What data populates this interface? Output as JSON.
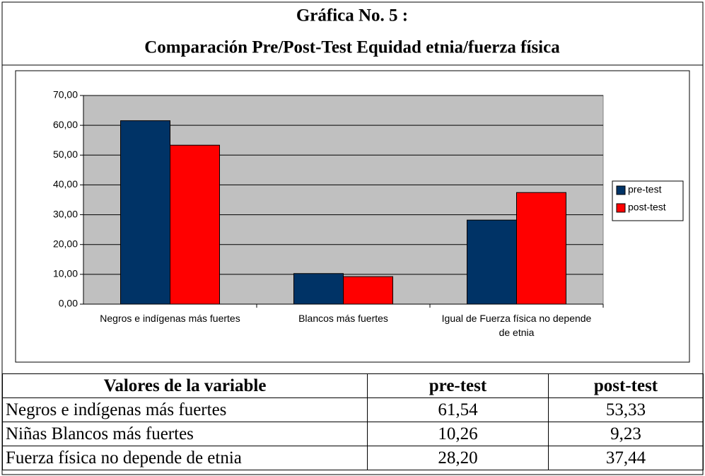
{
  "title": [
    "Gráfica No. 5 :",
    "Comparación Pre/Post-Test Equidad etnia/fuerza física"
  ],
  "chart_data": {
    "type": "bar",
    "categories": [
      "Negros e indígenas más fuertes",
      "Blancos más fuertes",
      "Igual de Fuerza física no depende de etnia"
    ],
    "series": [
      {
        "name": "pre-test",
        "color": "#003366",
        "values": [
          61.54,
          10.26,
          28.2
        ]
      },
      {
        "name": "post-test",
        "color": "#ff0000",
        "values": [
          53.33,
          9.23,
          37.44
        ]
      }
    ],
    "ylim": [
      0,
      70
    ],
    "yticks": [
      {
        "value": 0,
        "label": "0,00"
      },
      {
        "value": 10,
        "label": "10,00"
      },
      {
        "value": 20,
        "label": "20,00"
      },
      {
        "value": 30,
        "label": "30,00"
      },
      {
        "value": 40,
        "label": "40,00"
      },
      {
        "value": 50,
        "label": "50,00"
      },
      {
        "value": 60,
        "label": "60,00"
      },
      {
        "value": 70,
        "label": "70,00"
      }
    ],
    "grid": true,
    "legend": "right"
  },
  "table": {
    "header": [
      "Valores de la variable",
      "pre-test",
      "post-test"
    ],
    "rows": [
      [
        "Negros e indígenas más fuertes",
        "61,54",
        "53,33"
      ],
      [
        "Niñas Blancos más fuertes",
        "10,26",
        "9,23"
      ],
      [
        "Fuerza física no depende de etnia",
        "28,20",
        "37,44"
      ]
    ]
  }
}
